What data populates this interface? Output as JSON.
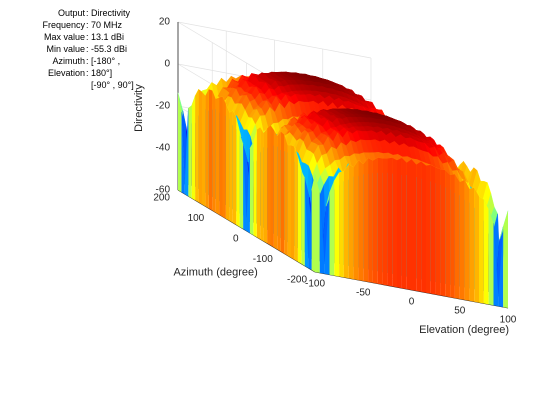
{
  "info": [
    {
      "label": "Output",
      "value": "Directivity"
    },
    {
      "label": "Frequency",
      "value": "70 MHz"
    },
    {
      "label": "Max value",
      "value": "13.1 dBi"
    },
    {
      "label": "Min value",
      "value": "-55.3 dBi"
    },
    {
      "label": "Azimuth",
      "value": "[-180° ,"
    },
    {
      "label": "Elevation",
      "value": "180°]"
    },
    {
      "label": "",
      "value": "[-90° , 90°]"
    }
  ],
  "chart_data": {
    "type": "surface",
    "xlabel": "Elevation (degree)",
    "ylabel": "Azimuth (degree)",
    "zlabel": "Directivity",
    "xlim": [
      -100,
      100
    ],
    "ylim": [
      -200,
      200
    ],
    "zlim": [
      -60,
      20
    ],
    "xticks": [
      "-100",
      "-50",
      "0",
      "50",
      "100"
    ],
    "yticks": [
      "-200",
      "-100",
      "0",
      "100",
      "200"
    ],
    "zticks": [
      "-60",
      "-40",
      "-20",
      "0",
      "20"
    ],
    "grid": true,
    "colormap": "jet",
    "surface_ridges": [
      {
        "azimuth_center": 90,
        "peak": 13.1
      },
      {
        "azimuth_center": -90,
        "peak": 13.1
      }
    ],
    "z_range": [
      -55.3,
      13.1
    ]
  }
}
